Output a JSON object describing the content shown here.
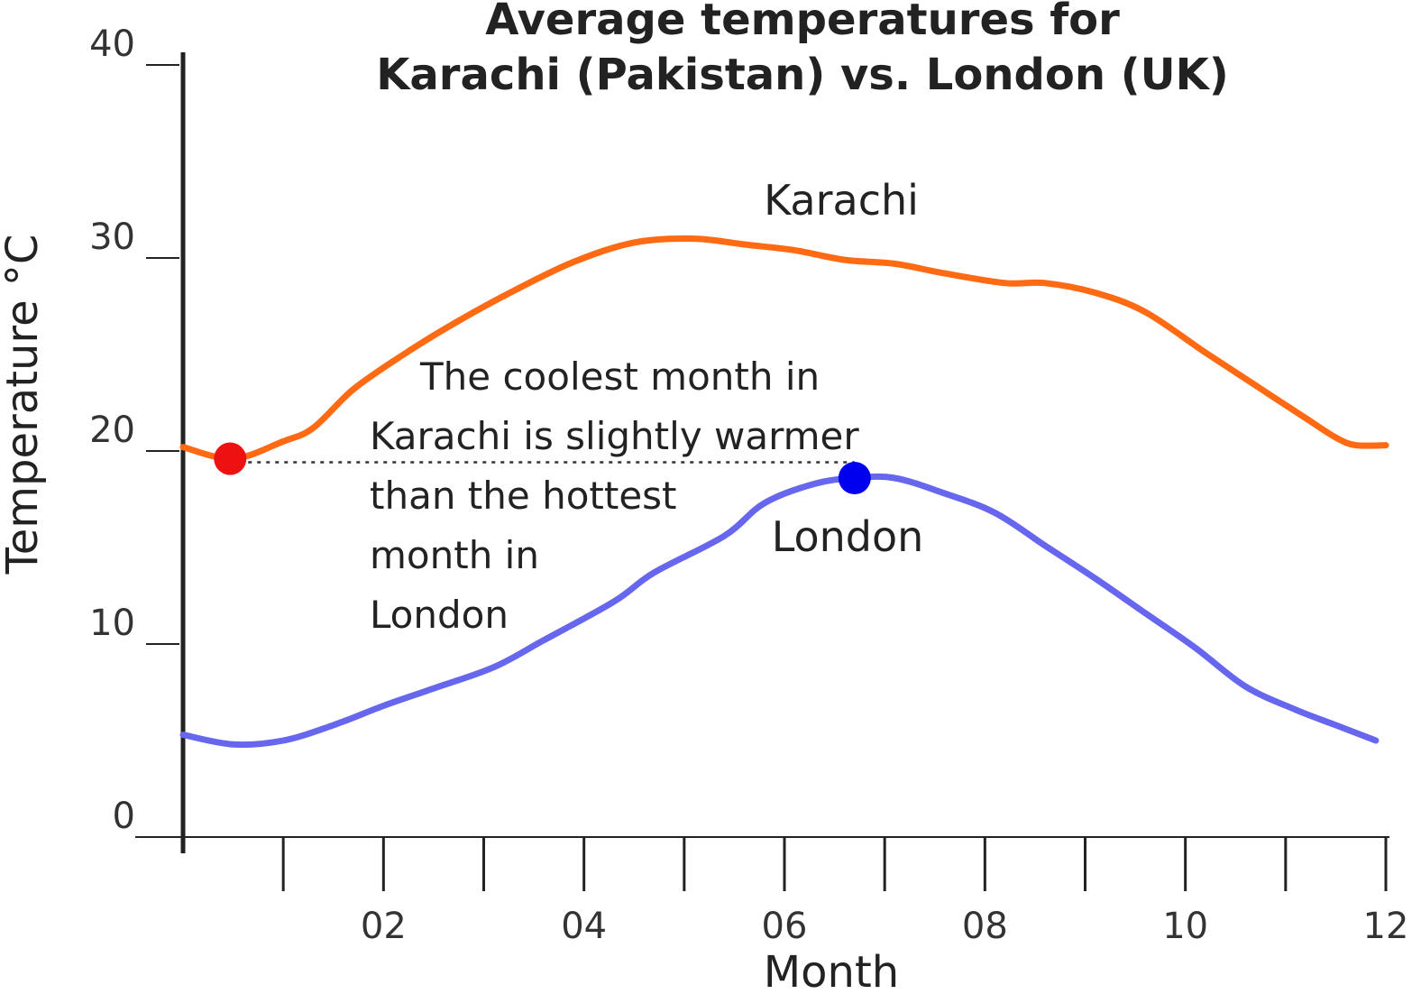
{
  "chart_data": {
    "type": "line",
    "title_lines": [
      "Average temperatures for",
      "Karachi (Pakistan) vs. London (UK)"
    ],
    "xlabel": "Month",
    "ylabel": "Temperature °C",
    "xlim": [
      0,
      12
    ],
    "ylim": [
      0,
      40
    ],
    "x_ticks": [
      1,
      2,
      3,
      4,
      5,
      6,
      7,
      8,
      9,
      10,
      11,
      12
    ],
    "x_tick_labels": [
      {
        "x": 2,
        "label": "02"
      },
      {
        "x": 4,
        "label": "04"
      },
      {
        "x": 6,
        "label": "06"
      },
      {
        "x": 8,
        "label": "08"
      },
      {
        "x": 10,
        "label": "10"
      },
      {
        "x": 12,
        "label": "12"
      }
    ],
    "y_ticks": [
      {
        "value": 0,
        "label": "0"
      },
      {
        "value": 10,
        "label": "10"
      },
      {
        "value": 20,
        "label": "20"
      },
      {
        "value": 30,
        "label": "30"
      },
      {
        "value": 40,
        "label": "40"
      }
    ],
    "grid": false,
    "series": [
      {
        "name": "Karachi",
        "color": "#ff6a13",
        "points": [
          [
            0,
            20.2
          ],
          [
            0.5,
            19.6
          ],
          [
            1,
            20.5
          ],
          [
            1.3,
            21.2
          ],
          [
            1.7,
            23.2
          ],
          [
            2.2,
            25.0
          ],
          [
            2.7,
            26.6
          ],
          [
            3.3,
            28.3
          ],
          [
            3.9,
            29.8
          ],
          [
            4.5,
            30.8
          ],
          [
            5.1,
            31.0
          ],
          [
            5.6,
            30.7
          ],
          [
            6.1,
            30.4
          ],
          [
            6.6,
            29.9
          ],
          [
            7.1,
            29.7
          ],
          [
            7.6,
            29.2
          ],
          [
            8.2,
            28.7
          ],
          [
            8.6,
            28.7
          ],
          [
            9.1,
            28.2
          ],
          [
            9.6,
            27.2
          ],
          [
            10.2,
            25.1
          ],
          [
            10.7,
            23.4
          ],
          [
            11.2,
            21.7
          ],
          [
            11.5,
            20.7
          ],
          [
            11.7,
            20.3
          ],
          [
            12,
            20.3
          ]
        ]
      },
      {
        "name": "London",
        "color": "#6666ee",
        "points": [
          [
            0,
            5.3
          ],
          [
            0.5,
            4.8
          ],
          [
            1,
            5.0
          ],
          [
            1.5,
            5.8
          ],
          [
            2,
            6.8
          ],
          [
            2.5,
            7.7
          ],
          [
            3.1,
            8.8
          ],
          [
            3.6,
            10.2
          ],
          [
            4.3,
            12.2
          ],
          [
            4.7,
            13.7
          ],
          [
            5.4,
            15.6
          ],
          [
            5.8,
            17.3
          ],
          [
            6.3,
            18.3
          ],
          [
            6.7,
            18.6
          ],
          [
            7.1,
            18.6
          ],
          [
            7.6,
            17.8
          ],
          [
            8.1,
            16.8
          ],
          [
            8.6,
            15.1
          ],
          [
            9.1,
            13.4
          ],
          [
            9.6,
            11.6
          ],
          [
            10.1,
            9.8
          ],
          [
            10.6,
            7.8
          ],
          [
            11.1,
            6.6
          ],
          [
            11.5,
            5.8
          ],
          [
            11.9,
            5.0
          ]
        ]
      }
    ],
    "highlights": [
      {
        "series": "Karachi",
        "x": 0.47,
        "y": 19.6,
        "color": "#ee1111"
      },
      {
        "series": "London",
        "x": 6.7,
        "y": 18.6,
        "color": "#0000ee"
      }
    ],
    "annotation": {
      "lines": [
        "The coolest month in",
        "Karachi is slightly warmer",
        "than the hottest",
        "month in",
        "London"
      ]
    }
  }
}
